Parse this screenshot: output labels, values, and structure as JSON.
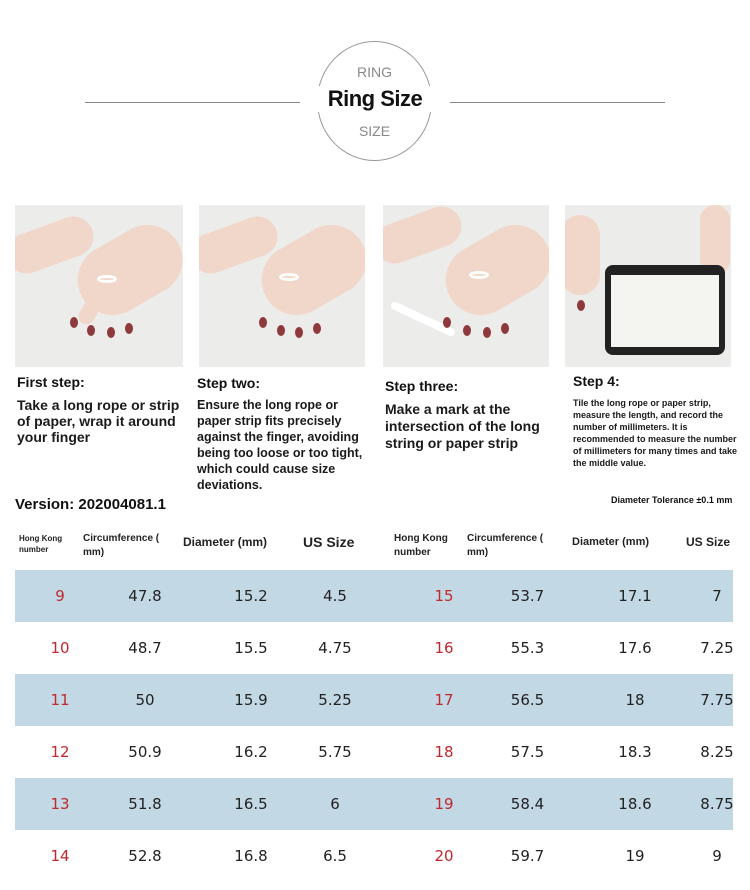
{
  "header": {
    "top_label": "RING",
    "title": "Ring Size",
    "bottom_label": "SIZE"
  },
  "steps": [
    {
      "title": "First step:",
      "text": "Take a long rope or strip of paper, wrap it around your finger"
    },
    {
      "title": "Step two:",
      "text": "Ensure the long rope or paper strip fits precisely against the finger, avoiding being too loose or too tight, which could cause size deviations."
    },
    {
      "title": "Step three:",
      "text": "Make a mark at the intersection of the long string or paper strip"
    },
    {
      "title": "Step 4:",
      "text": "Tile the long rope or paper strip, measure the length, and record the number of millimeters. It is recommended to measure the number of millimeters for many times and take the middle value."
    }
  ],
  "version": "Version: 202004081.1",
  "tolerance": "Diameter Tolerance ±0.1 mm",
  "table": {
    "headers": [
      "Hong Kong number",
      "Circumference ( mm)",
      "Diameter (mm)",
      "US Size"
    ],
    "left": [
      [
        "9",
        "47.8",
        "15.2",
        "4.5"
      ],
      [
        "10",
        "48.7",
        "15.5",
        "4.75"
      ],
      [
        "11",
        "50",
        "15.9",
        "5.25"
      ],
      [
        "12",
        "50.9",
        "16.2",
        "5.75"
      ],
      [
        "13",
        "51.8",
        "16.5",
        "6"
      ],
      [
        "14",
        "52.8",
        "16.8",
        "6.5"
      ]
    ],
    "right": [
      [
        "15",
        "53.7",
        "17.1",
        "7"
      ],
      [
        "16",
        "55.3",
        "17.6",
        "7.25"
      ],
      [
        "17",
        "56.5",
        "18",
        "7.75"
      ],
      [
        "18",
        "57.5",
        "18.3",
        "8.25"
      ],
      [
        "19",
        "58.4",
        "18.6",
        "8.75"
      ],
      [
        "20",
        "59.7",
        "19",
        "9"
      ]
    ]
  },
  "colors": {
    "row_alt": "#c2d8e5",
    "hk_number": "#c0282d"
  }
}
